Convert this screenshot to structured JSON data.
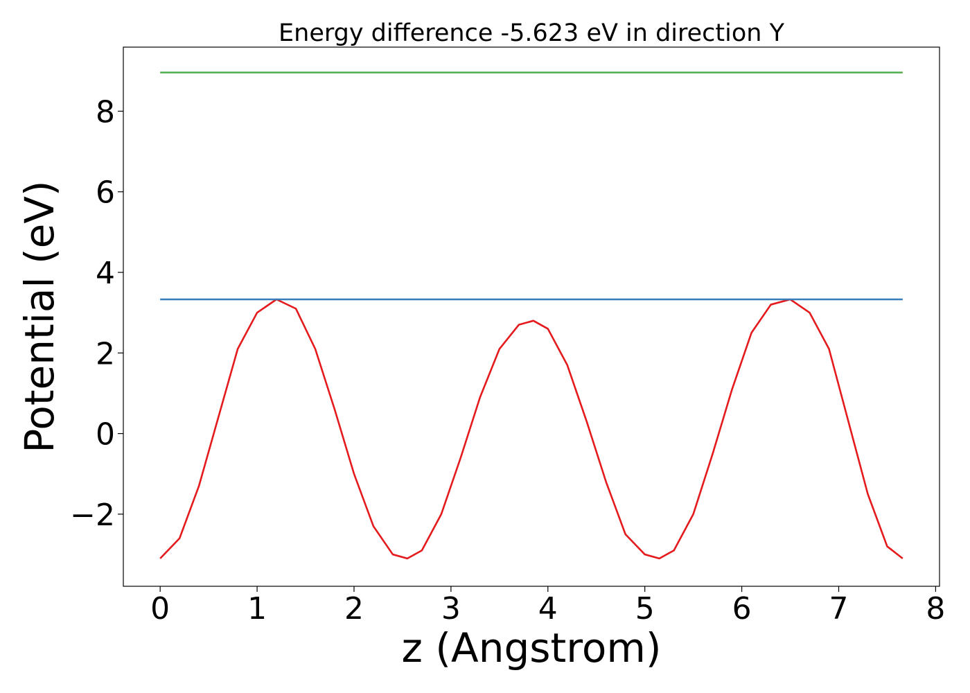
{
  "chart_data": {
    "type": "line",
    "title": "Energy difference -5.623 eV in direction Y",
    "xlabel": "z (Angstrom)",
    "ylabel": "Potential (eV)",
    "xlim": [
      -0.38,
      8.04
    ],
    "ylim": [
      -3.79,
      9.59
    ],
    "xticks": [
      0,
      1,
      2,
      3,
      4,
      5,
      6,
      7,
      8
    ],
    "xtick_labels": [
      "0",
      "1",
      "2",
      "3",
      "4",
      "5",
      "6",
      "7",
      "8"
    ],
    "yticks": [
      -2,
      0,
      2,
      4,
      6,
      8
    ],
    "ytick_labels": [
      "−2",
      "0",
      "2",
      "4",
      "6",
      "8"
    ],
    "grid": false,
    "legend": "none",
    "series": [
      {
        "color": "#e41a1c",
        "x": [
          0.0,
          0.2,
          0.4,
          0.6,
          0.8,
          1.0,
          1.2,
          1.4,
          1.6,
          1.8,
          2.0,
          2.2,
          2.4,
          2.55,
          2.7,
          2.9,
          3.1,
          3.3,
          3.5,
          3.7,
          3.85,
          4.0,
          4.2,
          4.4,
          4.6,
          4.8,
          5.0,
          5.15,
          5.3,
          5.5,
          5.7,
          5.9,
          6.1,
          6.3,
          6.5,
          6.7,
          6.9,
          7.1,
          7.3,
          7.5,
          7.66
        ],
        "y": [
          -3.1,
          -2.6,
          -1.3,
          0.4,
          2.1,
          3.0,
          3.33,
          3.1,
          2.1,
          0.6,
          -1.0,
          -2.3,
          -3.0,
          -3.1,
          -2.9,
          -2.0,
          -0.6,
          0.9,
          2.1,
          2.7,
          2.8,
          2.6,
          1.7,
          0.3,
          -1.2,
          -2.5,
          -3.0,
          -3.1,
          -2.9,
          -2.0,
          -0.5,
          1.1,
          2.5,
          3.2,
          3.33,
          3.0,
          2.1,
          0.3,
          -1.5,
          -2.8,
          -3.1
        ]
      },
      {
        "color": "#377eb8",
        "x": [
          0.0,
          7.66
        ],
        "y": [
          3.33,
          3.33
        ]
      },
      {
        "color": "#4daf4a",
        "x": [
          0.0,
          7.66
        ],
        "y": [
          8.96,
          8.96
        ]
      }
    ]
  }
}
